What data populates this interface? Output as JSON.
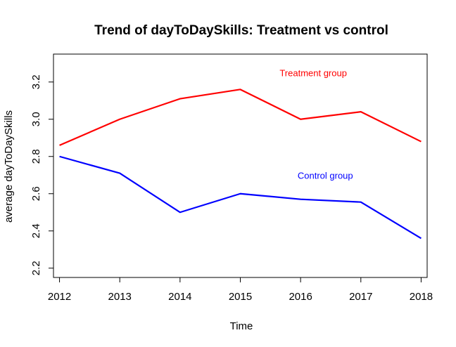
{
  "chart_data": {
    "type": "line",
    "title": "Trend of dayToDaySkills: Treatment vs control",
    "xlabel": "Time",
    "ylabel": "average dayToDaySkills",
    "x": [
      2012,
      2013,
      2014,
      2015,
      2016,
      2017,
      2018
    ],
    "xlim": [
      2011.9,
      2018.1
    ],
    "ylim": [
      2.15,
      3.35
    ],
    "yticks": [
      2.2,
      2.4,
      2.6,
      2.8,
      3.0,
      3.2
    ],
    "ytick_labels": [
      "2.2",
      "2.4",
      "2.6",
      "2.8",
      "3.0",
      "3.2"
    ],
    "xtick_labels": [
      "2012",
      "2013",
      "2014",
      "2015",
      "2016",
      "2017",
      "2018"
    ],
    "grid": false,
    "series": [
      {
        "name": "Treatment group",
        "color": "#ff0000",
        "values": [
          2.86,
          3.0,
          3.11,
          3.16,
          3.0,
          3.04,
          2.88
        ],
        "label_anchor": [
          2016.0,
          3.25
        ]
      },
      {
        "name": "Control group",
        "color": "#0000ff",
        "values": [
          2.8,
          2.71,
          2.5,
          2.6,
          2.57,
          2.555,
          2.36
        ],
        "label_anchor": [
          2016.2,
          2.7
        ]
      }
    ]
  }
}
